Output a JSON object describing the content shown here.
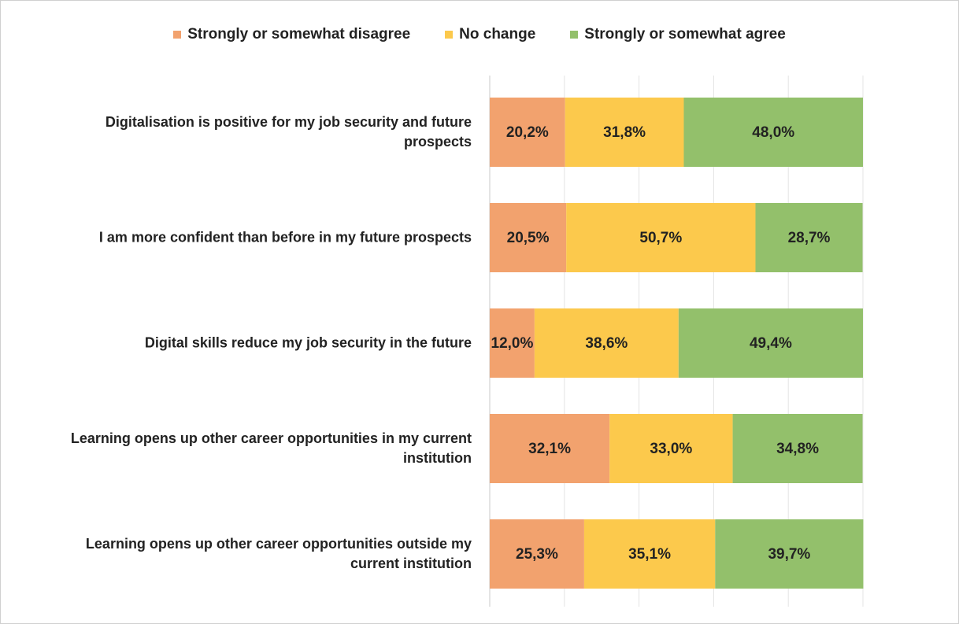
{
  "chart_data": {
    "type": "bar",
    "orientation": "horizontal",
    "stacked": true,
    "categories": [
      "Digitalisation is positive for my job security and future prospects",
      "I am more confident than before in my future prospects",
      "Digital skills reduce my job security in the future",
      "Learning opens up other career opportunities in my current institution",
      "Learning opens up other career opportunities outside my current institution"
    ],
    "series": [
      {
        "name": "Strongly or somewhat disagree",
        "color": "#f2a26e",
        "values": [
          20.2,
          20.5,
          12.0,
          32.1,
          25.3
        ],
        "value_labels": [
          "20,2%",
          "20,5%",
          "12,0%",
          "32,1%",
          "25,3%"
        ]
      },
      {
        "name": "No change",
        "color": "#fcc94c",
        "values": [
          31.8,
          50.7,
          38.6,
          33.0,
          35.1
        ],
        "value_labels": [
          "31,8%",
          "50,7%",
          "38,6%",
          "33,0%",
          "35,1%"
        ]
      },
      {
        "name": "Strongly or somewhat agree",
        "color": "#93c06b",
        "values": [
          48.0,
          28.7,
          49.4,
          34.8,
          39.7
        ],
        "value_labels": [
          "48,0%",
          "28,7%",
          "49,4%",
          "34,8%",
          "39,7%"
        ]
      }
    ],
    "xlim": [
      0,
      100
    ],
    "xticks": [
      0,
      20,
      40,
      60,
      80,
      100
    ],
    "grid": true,
    "legend": "top"
  }
}
